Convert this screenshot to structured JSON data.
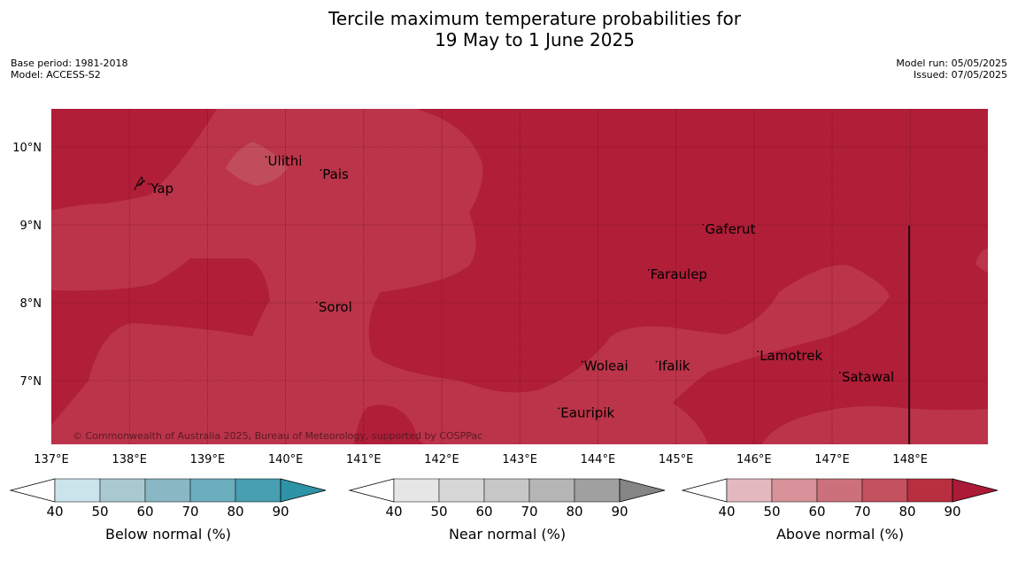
{
  "title": {
    "line1": "Tercile maximum temperature probabilities for",
    "line2": "19 May to 1 June 2025"
  },
  "info_left": {
    "base_period": "Base period: 1981-2018",
    "model": "Model: ACCESS-S2"
  },
  "info_right": {
    "model_run": "Model run: 05/05/2025",
    "issued": "Issued: 07/05/2025"
  },
  "map": {
    "lon_ticks": [
      "137°E",
      "138°E",
      "139°E",
      "140°E",
      "141°E",
      "142°E",
      "143°E",
      "144°E",
      "145°E",
      "146°E",
      "147°E",
      "148°E"
    ],
    "lat_ticks": [
      "10°N",
      "9°N",
      "8°N",
      "7°N"
    ],
    "places": [
      {
        "name": "Ulithi",
        "lon": 139.75,
        "lat": 9.85
      },
      {
        "name": "Pais",
        "lon": 140.45,
        "lat": 9.68
      },
      {
        "name": "Yap",
        "lon": 138.25,
        "lat": 9.5
      },
      {
        "name": "Gaferut",
        "lon": 145.35,
        "lat": 8.98
      },
      {
        "name": "Faraulep",
        "lon": 144.65,
        "lat": 8.4
      },
      {
        "name": "Sorol",
        "lon": 140.4,
        "lat": 7.98
      },
      {
        "name": "Lamotrek",
        "lon": 146.05,
        "lat": 7.35
      },
      {
        "name": "Woleai",
        "lon": 143.8,
        "lat": 7.22
      },
      {
        "name": "Ifalik",
        "lon": 144.75,
        "lat": 7.22
      },
      {
        "name": "Satawal",
        "lon": 147.1,
        "lat": 7.08
      },
      {
        "name": "Eauripik",
        "lon": 143.5,
        "lat": 6.62
      }
    ],
    "copyright": "© Commonwealth of Australia 2025, Bureau of Meteorology, supported by COSPPac",
    "colors": {
      "band_80_90": "#b01e38",
      "band_70_80": "#bb3449"
    }
  },
  "colorbars": [
    {
      "id": "below",
      "label": "Below normal (%)",
      "ticks": [
        "40",
        "50",
        "60",
        "70",
        "80",
        "90"
      ],
      "colors": [
        "#cbe3ea",
        "#a9c9d1",
        "#89b7c4",
        "#6aadbd",
        "#479fb1",
        "#2e93a6"
      ]
    },
    {
      "id": "near",
      "label": "Near normal (%)",
      "ticks": [
        "40",
        "50",
        "60",
        "70",
        "80",
        "90"
      ],
      "colors": [
        "#e6e6e6",
        "#d7d7d7",
        "#c7c7c7",
        "#b5b5b5",
        "#a0a0a0",
        "#858585"
      ]
    },
    {
      "id": "above",
      "label": "Above normal (%)",
      "ticks": [
        "40",
        "50",
        "60",
        "70",
        "80",
        "90"
      ],
      "colors": [
        "#e3b9bf",
        "#d99299",
        "#cc717c",
        "#c3515f",
        "#b8303f",
        "#ab1a36"
      ]
    }
  ]
}
